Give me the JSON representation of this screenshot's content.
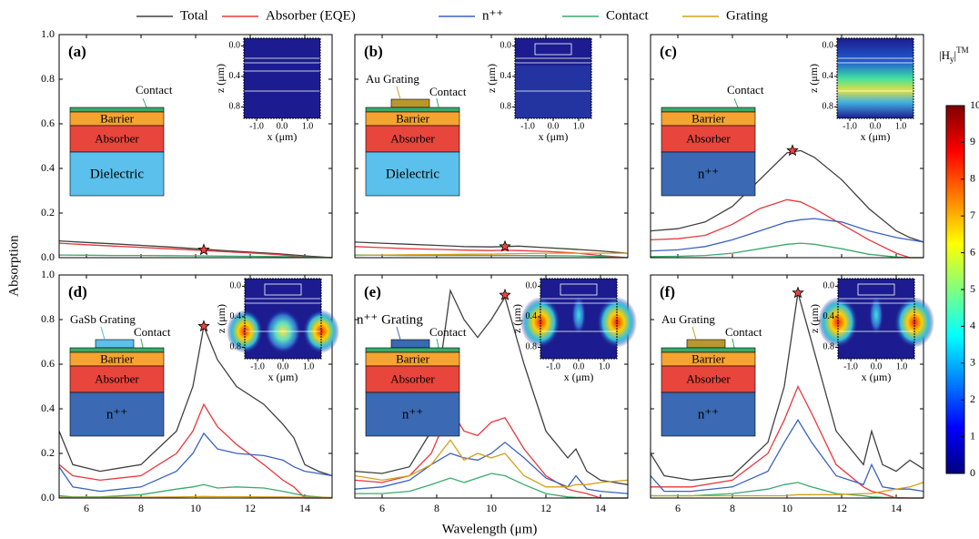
{
  "chart_data": {
    "type": "line",
    "xlabel": "Wavelength (μm)",
    "ylabel": "Absorption",
    "xlim": [
      5,
      15
    ],
    "ylim": [
      0,
      1
    ],
    "xticks": [
      6,
      8,
      10,
      12,
      14
    ],
    "yticks": [
      {
        "value": 0,
        "label": "0.0"
      },
      {
        "value": 0.2,
        "label": "0.2"
      },
      {
        "value": 0.4,
        "label": "0.4"
      },
      {
        "value": 0.6,
        "label": "0.6"
      },
      {
        "value": 0.8,
        "label": "0.8"
      },
      {
        "value": 1,
        "label": "1.0"
      }
    ],
    "legend": [
      {
        "name": "Total",
        "color": "#404040"
      },
      {
        "name": "Absorber (EQE)",
        "color": "#e8383d"
      },
      {
        "name": "n⁺⁺",
        "color": "#3a62c0"
      },
      {
        "name": "Contact",
        "color": "#3aaa6a"
      },
      {
        "name": "Grating",
        "color": "#d4a017"
      }
    ],
    "colorbar": {
      "label": [
        "|H",
        "y",
        "|",
        "TM"
      ],
      "ylim": [
        0,
        10
      ],
      "yticks": [
        0,
        1,
        2,
        3,
        4,
        5,
        6,
        7,
        8,
        9,
        10
      ]
    },
    "inset": {
      "xlabel": "x (μm)",
      "ylabel": "z (μm)",
      "xlim": [
        -1.5,
        1.5
      ],
      "ylim": [
        -0.1,
        0.95
      ],
      "xticks": [
        {
          "value": -1,
          "label": "-1.0"
        },
        {
          "value": 0,
          "label": "0.0"
        },
        {
          "value": 1,
          "label": "1.0"
        }
      ],
      "yticks": [
        {
          "value": 0,
          "label": "0.0"
        },
        {
          "value": 0.4,
          "label": "0.4"
        },
        {
          "value": 0.8,
          "label": "0.8"
        }
      ]
    },
    "panels": [
      {
        "label": "(a)",
        "x": [
          5,
          6,
          7,
          8,
          9,
          10,
          11,
          12,
          13,
          14,
          15
        ],
        "series": [
          {
            "name": "Total",
            "values": [
              0.075,
              0.068,
              0.062,
              0.055,
              0.048,
              0.04,
              0.032,
              0.025,
              0.018,
              0.008,
              0.0
            ]
          },
          {
            "name": "Absorber (EQE)",
            "values": [
              0.065,
              0.058,
              0.052,
              0.046,
              0.04,
              0.034,
              0.027,
              0.021,
              0.014,
              0.003,
              0.0
            ]
          },
          {
            "name": "Contact",
            "values": [
              0.012,
              0.011,
              0.01,
              0.01,
              0.009,
              0.008,
              0.007,
              0.006,
              0.005,
              0.003,
              0.0
            ]
          }
        ],
        "star": {
          "x": 10.3,
          "y": 0.035
        },
        "device": {
          "contact": "Contact",
          "layers": [
            "Barrier",
            "Absorber",
            "Dielectric"
          ]
        }
      },
      {
        "label": "(b)",
        "x": [
          5,
          6,
          7,
          8,
          9,
          10,
          10.5,
          11,
          12,
          13,
          14,
          15
        ],
        "series": [
          {
            "name": "Total",
            "values": [
              0.07,
              0.065,
              0.06,
              0.055,
              0.05,
              0.048,
              0.05,
              0.052,
              0.045,
              0.038,
              0.03,
              0.02
            ]
          },
          {
            "name": "Absorber (EQE)",
            "values": [
              0.05,
              0.045,
              0.04,
              0.037,
              0.034,
              0.032,
              0.033,
              0.032,
              0.028,
              0.022,
              0.01,
              0.0
            ]
          },
          {
            "name": "Contact",
            "values": [
              0.012,
              0.011,
              0.01,
              0.01,
              0.01,
              0.01,
              0.01,
              0.01,
              0.009,
              0.008,
              0.005,
              0.0
            ]
          },
          {
            "name": "Grating",
            "values": [
              0.01,
              0.012,
              0.013,
              0.014,
              0.015,
              0.016,
              0.017,
              0.018,
              0.02,
              0.02,
              0.02,
              0.02
            ]
          }
        ],
        "star": {
          "x": 10.5,
          "y": 0.05
        },
        "device": {
          "grating": "Au Grating",
          "contact": "Contact",
          "layers": [
            "Barrier",
            "Absorber",
            "Dielectric"
          ]
        }
      },
      {
        "label": "(c)",
        "x": [
          5,
          6,
          7,
          8,
          9,
          10,
          10.5,
          11,
          12,
          13,
          14,
          14.5,
          15
        ],
        "series": [
          {
            "name": "Total",
            "values": [
              0.12,
              0.13,
              0.16,
              0.23,
              0.35,
              0.47,
              0.48,
              0.45,
              0.35,
              0.22,
              0.12,
              0.09,
              0.07
            ]
          },
          {
            "name": "Absorber (EQE)",
            "values": [
              0.08,
              0.085,
              0.1,
              0.15,
              0.22,
              0.26,
              0.25,
              0.22,
              0.15,
              0.08,
              0.02,
              0.0,
              0.0
            ]
          },
          {
            "name": "n⁺⁺",
            "values": [
              0.03,
              0.035,
              0.05,
              0.08,
              0.12,
              0.16,
              0.17,
              0.175,
              0.16,
              0.12,
              0.09,
              0.08,
              0.07
            ]
          },
          {
            "name": "Contact",
            "values": [
              0.005,
              0.006,
              0.01,
              0.02,
              0.04,
              0.06,
              0.065,
              0.06,
              0.04,
              0.015,
              0.003,
              0.0,
              0.0
            ]
          }
        ],
        "star": {
          "x": 10.2,
          "y": 0.48
        },
        "device": {
          "contact": "Contact",
          "layers": [
            "Barrier",
            "Absorber",
            "n⁺⁺"
          ]
        }
      },
      {
        "label": "(d)",
        "x": [
          5,
          5.5,
          6.5,
          8,
          9.3,
          9.9,
          10.3,
          10.8,
          11.5,
          12.5,
          13.2,
          13.6,
          14,
          14.5,
          15
        ],
        "series": [
          {
            "name": "Total",
            "values": [
              0.3,
              0.15,
              0.12,
              0.15,
              0.3,
              0.5,
              0.77,
              0.62,
              0.5,
              0.42,
              0.33,
              0.27,
              0.15,
              0.12,
              0.1
            ]
          },
          {
            "name": "Absorber (EQE)",
            "values": [
              0.15,
              0.1,
              0.08,
              0.1,
              0.2,
              0.3,
              0.42,
              0.32,
              0.24,
              0.15,
              0.08,
              0.05,
              0.0,
              0.0,
              0.0
            ]
          },
          {
            "name": "n⁺⁺",
            "values": [
              0.14,
              0.05,
              0.03,
              0.05,
              0.12,
              0.2,
              0.29,
              0.22,
              0.2,
              0.19,
              0.17,
              0.14,
              0.12,
              0.11,
              0.1
            ]
          },
          {
            "name": "Contact",
            "values": [
              0.01,
              0.005,
              0.005,
              0.015,
              0.04,
              0.05,
              0.06,
              0.045,
              0.05,
              0.045,
              0.03,
              0.02,
              0.01,
              0.005,
              0.0
            ]
          },
          {
            "name": "Grating",
            "values": [
              0.003,
              0.003,
              0.003,
              0.004,
              0.005,
              0.006,
              0.007,
              0.006,
              0.006,
              0.005,
              0.005,
              0.004,
              0.004,
              0.003,
              0.003
            ]
          }
        ],
        "star": {
          "x": 10.3,
          "y": 0.77
        },
        "device": {
          "grating": "GaSb Grating",
          "contact": "Contact",
          "layers": [
            "Barrier",
            "Absorber",
            "n⁺⁺"
          ]
        }
      },
      {
        "label": "(e)",
        "x": [
          5,
          6,
          7,
          7.8,
          8.5,
          9,
          9.5,
          10,
          10.5,
          11.2,
          12,
          12.8,
          13.1,
          13.5,
          14,
          15
        ],
        "series": [
          {
            "name": "Total",
            "values": [
              0.12,
              0.11,
              0.14,
              0.3,
              0.93,
              0.8,
              0.72,
              0.8,
              0.9,
              0.6,
              0.3,
              0.18,
              0.22,
              0.12,
              0.08,
              0.06
            ]
          },
          {
            "name": "Absorber (EQE)",
            "values": [
              0.08,
              0.07,
              0.1,
              0.2,
              0.4,
              0.3,
              0.28,
              0.34,
              0.36,
              0.22,
              0.1,
              0.04,
              0.03,
              0.02,
              0.0,
              0.0
            ]
          },
          {
            "name": "n⁺⁺",
            "values": [
              0.04,
              0.05,
              0.08,
              0.15,
              0.2,
              0.18,
              0.17,
              0.2,
              0.25,
              0.18,
              0.09,
              0.05,
              0.1,
              0.04,
              0.03,
              0.02
            ]
          },
          {
            "name": "Contact",
            "values": [
              0.02,
              0.02,
              0.03,
              0.06,
              0.09,
              0.07,
              0.09,
              0.11,
              0.1,
              0.06,
              0.02,
              0.005,
              0.003,
              0.002,
              0.0,
              0.0
            ]
          },
          {
            "name": "Grating",
            "values": [
              0.1,
              0.08,
              0.1,
              0.15,
              0.26,
              0.17,
              0.2,
              0.18,
              0.2,
              0.1,
              0.05,
              0.05,
              0.06,
              0.06,
              0.07,
              0.08
            ]
          }
        ],
        "star": {
          "x": 10.5,
          "y": 0.91
        },
        "device": {
          "grating": "n⁺⁺ Grating",
          "contact": "Contact",
          "layers": [
            "Barrier",
            "Absorber",
            "n⁺⁺"
          ]
        }
      },
      {
        "label": "(f)",
        "x": [
          5,
          5.5,
          6.5,
          8,
          9.3,
          9.9,
          10.4,
          10.9,
          11.8,
          12.8,
          13.1,
          13.5,
          14,
          14.5,
          15
        ],
        "series": [
          {
            "name": "Total",
            "values": [
              0.2,
              0.1,
              0.08,
              0.1,
              0.25,
              0.5,
              0.92,
              0.7,
              0.3,
              0.15,
              0.3,
              0.15,
              0.12,
              0.17,
              0.13
            ]
          },
          {
            "name": "Absorber (EQE)",
            "values": [
              0.05,
              0.05,
              0.05,
              0.08,
              0.2,
              0.35,
              0.5,
              0.38,
              0.15,
              0.05,
              0.03,
              0.02,
              0.0,
              0.0,
              0.0
            ]
          },
          {
            "name": "n⁺⁺",
            "values": [
              0.1,
              0.03,
              0.03,
              0.05,
              0.12,
              0.25,
              0.35,
              0.25,
              0.1,
              0.06,
              0.15,
              0.05,
              0.04,
              0.04,
              0.03
            ]
          },
          {
            "name": "Contact",
            "values": [
              0.01,
              0.01,
              0.01,
              0.02,
              0.04,
              0.06,
              0.07,
              0.05,
              0.02,
              0.01,
              0.005,
              0.003,
              0.002,
              0.0,
              0.0
            ]
          },
          {
            "name": "Grating",
            "values": [
              0.01,
              0.01,
              0.01,
              0.01,
              0.01,
              0.01,
              0.015,
              0.015,
              0.015,
              0.02,
              0.02,
              0.03,
              0.04,
              0.05,
              0.07
            ]
          }
        ],
        "star": {
          "x": 10.4,
          "y": 0.92
        },
        "device": {
          "grating": "Au Grating",
          "contact": "Contact",
          "layers": [
            "Barrier",
            "Absorber",
            "n⁺⁺"
          ]
        }
      }
    ]
  }
}
